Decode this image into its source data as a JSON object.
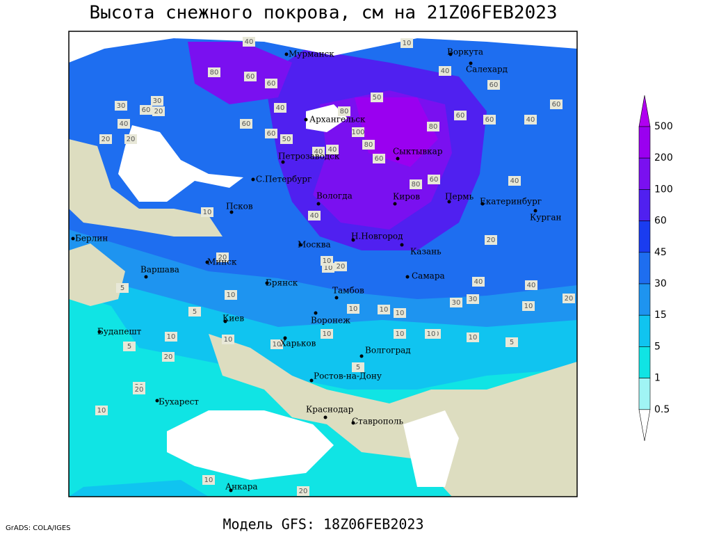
{
  "title": "Высота снежного покрова, см на 21Z06FEB2023",
  "footer": {
    "credit": "GrADS: COLA/IGES",
    "model": "Модель GFS: 18Z06FEB2023"
  },
  "cities": [
    "Мурманск",
    "Воркута",
    "Салехард",
    "Архангельск",
    "Сыктывкар",
    "Петрозаводск",
    "С.Петербург",
    "Вологда",
    "Киров",
    "Пермь",
    "Екатеринбург",
    "Курган",
    "Псков",
    "Москва",
    "Н.Новгород",
    "Казань",
    "Берлин",
    "Варшава",
    "Минск",
    "Брянск",
    "Тамбов",
    "Самара",
    "Киев",
    "Воронеж",
    "Будапешт",
    "Харьков",
    "Волгоград",
    "Ростов-на-Дону",
    "Бухарест",
    "Краснодар",
    "Ставрополь",
    "Анкара"
  ],
  "contour_labels": [
    40,
    80,
    60,
    60,
    10,
    40,
    30,
    30,
    60,
    20,
    40,
    40,
    20,
    50,
    80,
    60,
    40,
    60,
    40,
    100,
    80,
    80,
    60,
    40,
    20,
    60,
    60,
    60,
    50,
    40,
    60,
    80,
    60,
    40,
    20,
    10,
    20,
    10,
    20,
    10,
    10,
    10,
    5,
    5,
    10,
    10,
    20,
    10,
    10,
    20,
    5,
    10,
    20,
    10,
    20,
    30,
    40,
    40,
    30,
    20,
    10,
    10,
    10,
    10,
    10,
    10,
    5,
    5,
    20,
    10
  ],
  "legend": {
    "levels": [
      500,
      200,
      100,
      60,
      45,
      30,
      15,
      5,
      1,
      0.5
    ],
    "colors": [
      "#b000f0",
      "#9a00f0",
      "#7a10f0",
      "#5020f0",
      "#1a3cf0",
      "#1e6ef0",
      "#1e94f0",
      "#10c4f0",
      "#10e4e4",
      "#a0f4f4",
      "#ffffff"
    ]
  }
}
